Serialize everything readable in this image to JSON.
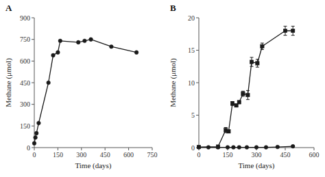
{
  "chart_data": [
    {
      "type": "line",
      "title": "A",
      "xlabel": "Time (days)",
      "ylabel": "Methane (μmol)",
      "color": "#1a1a1a",
      "grid": false,
      "x": [
        0,
        7,
        14,
        28,
        90,
        120,
        150,
        165,
        280,
        320,
        360,
        490,
        650
      ],
      "series": [
        {
          "marker": "circle",
          "values": [
            30,
            70,
            100,
            170,
            450,
            640,
            660,
            740,
            730,
            740,
            750,
            700,
            660
          ]
        }
      ],
      "xlim": [
        0,
        750
      ],
      "ylim": [
        0,
        900
      ],
      "xticks": [
        0,
        150,
        300,
        450,
        600,
        750
      ],
      "yticks": [
        0,
        150,
        300,
        450,
        600,
        750,
        900
      ]
    },
    {
      "type": "line",
      "title": "B",
      "xlabel": "Time (days)",
      "ylabel": "Methane (μmol)",
      "color": "#1a1a1a",
      "grid": false,
      "series": [
        {
          "marker": "circle",
          "x": [
            0,
            50,
            100,
            150,
            180,
            210,
            250,
            300,
            350,
            410,
            490
          ],
          "values": [
            0.05,
            0.05,
            0.05,
            0.05,
            0.05,
            0.05,
            0.05,
            0.05,
            0.05,
            0.1,
            0.2
          ],
          "errors": [
            0,
            0,
            0,
            0,
            0,
            0,
            0,
            0,
            0,
            0,
            0.05
          ]
        },
        {
          "marker": "square",
          "x": [
            0,
            100,
            140,
            155,
            175,
            195,
            210,
            230,
            255,
            275,
            305,
            330,
            450,
            490
          ],
          "values": [
            0.1,
            0.15,
            2.7,
            2.5,
            6.8,
            6.5,
            7.0,
            8.3,
            8.1,
            13.2,
            13.0,
            15.6,
            18.0,
            18.0
          ],
          "errors": [
            0.0,
            0.0,
            0.4,
            0.2,
            0.3,
            0.2,
            0.2,
            0.4,
            0.7,
            0.7,
            0.6,
            0.5,
            0.7,
            0.7
          ]
        }
      ],
      "xlim": [
        0,
        600
      ],
      "ylim": [
        0,
        20
      ],
      "xticks": [
        0,
        150,
        300,
        450,
        600
      ],
      "yticks": [
        0,
        5,
        10,
        15,
        20
      ]
    }
  ]
}
